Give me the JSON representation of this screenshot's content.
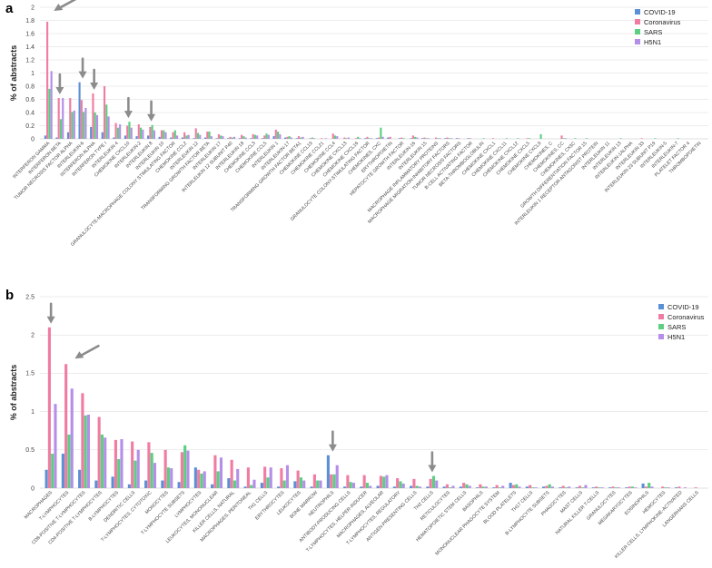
{
  "colors": {
    "COVID-19": "#5b8fd6",
    "Coronavirus": "#f07ca2",
    "SARS": "#5ccf83",
    "H5N1": "#b58ee9",
    "arrow": "#8c8c8c"
  },
  "chart_data": [
    {
      "panel": "a",
      "type": "bar",
      "ylabel": "% of abstracts",
      "ylim": [
        0,
        2
      ],
      "yticks": [
        "0",
        "0.2",
        "0.4",
        "0.6",
        "0.8",
        "1",
        "1.2",
        "1.4",
        "1.6",
        "1.8",
        "2"
      ],
      "grid": true,
      "legend": "top-right",
      "categories": [
        "INTERFERON GAMMA",
        "INTERFERON BETA",
        "TUMOR NECROSIS FACTOR ALPHA",
        "INTERLEUKIN-6",
        "INTERFERON ALPHA",
        "INTERFERON TYPE I",
        "INTERLEUKIN 4",
        "CHEMOKINE CXCL10",
        "INTERLEUKIN-2",
        "INTERLEUKIN 8",
        "INTERLEUKIN 10",
        "GRANULOCYTE-MACROPHAGE COLONY STIMULATING FACTOR",
        "CHEMOKINE CCL2",
        "INTERLEUKIN 12",
        "TRANSFORMING GROWTH FACTOR BETA",
        "INTERLEUKIN 17",
        "INTERLEUKIN 12 SUBUNIT P40",
        "INTERLEUKIN 18",
        "CHEMOKINE CCL3",
        "CHEMOKINE CCL5",
        "INTERLEUKIN 1",
        "INTERLEUKIN-17",
        "TRANSFORMING GROWTH FACTOR BETA1",
        "CHEMOKINE CCL19",
        "CHEMOKINE CCL21",
        "CHEMOKINE CCL4",
        "CHEMOKINE CXCL13",
        "CHEMOKINE CXCL16",
        "GRANULOCYTE COLONY-STIMULATING FACTOR",
        "CHEMOKINES, CXC",
        "ERYTHROPOIETIN",
        "HEPATOCYTE GROWTH FACTOR",
        "INTERLEUKIN-16",
        "INTERLEUKIN 15",
        "MACROPHAGE INFLAMMATORY PROTEINS",
        "MACROPHAGE MIGRATION-INHIBITORY FACTORS",
        "TUMOR NECROSIS FACTORS",
        "B-CELL ACTIVATING FACTOR",
        "BETA-THROMBOGLOBULIN",
        "CHEMOKINE CXCL1",
        "CHEMOKINE CXCL11",
        "CHEMOKINE CXCL12",
        "CHEMOKINE CXCL5",
        "CHEMOKINE CXCL9",
        "CHEMOKINES, C",
        "CHEMOKINES, CC",
        "CHEMOKINES, CX3C",
        "GROWTH DIFFERENTIATION FACTOR 15",
        "INTERLEUKIN 1 RECEPTOR ANTAGONIST PROTEIN",
        "INTERLEUKIN 11",
        "INTERLEUKIN 13",
        "INTERLEUKIN-1ALPHA",
        "INTERLEUKIN 33",
        "INTERLEUKIN-23 SUBUNIT P19",
        "INTERLEUKIN-5",
        "INTERLEUKIN-7",
        "PLATELET FACTOR 4",
        "THROMBOPOIETIN"
      ],
      "series": [
        {
          "name": "COVID-19",
          "values": [
            0.05,
            0.02,
            0.1,
            0.86,
            0.18,
            0.1,
            0.02,
            0.05,
            0.04,
            0.05,
            0.03,
            0.02,
            0.02,
            0.01,
            0.02,
            0.01,
            0.01,
            0.01,
            0.01,
            0.01,
            0.04,
            0.02,
            0.01,
            0,
            0,
            0,
            0,
            0,
            0.01,
            0.01,
            0.02,
            0.01,
            0.01,
            0.01,
            0,
            0.01,
            0.01,
            0.01,
            0,
            0,
            0,
            0,
            0,
            0,
            0,
            0,
            0,
            0,
            0,
            0,
            0,
            0,
            0,
            0,
            0,
            0,
            0,
            0
          ]
        },
        {
          "name": "Coronavirus",
          "values": [
            1.78,
            0.62,
            0.62,
            0.59,
            0.69,
            0.8,
            0.24,
            0.2,
            0.22,
            0.18,
            0.13,
            0.1,
            0.1,
            0.16,
            0.11,
            0.07,
            0.03,
            0.06,
            0.07,
            0.05,
            0.14,
            0.03,
            0.04,
            0.01,
            0.01,
            0.08,
            0.02,
            0.01,
            0.03,
            0.02,
            0.03,
            0.02,
            0.05,
            0.02,
            0.02,
            0.02,
            0.01,
            0.01,
            0,
            0.01,
            0,
            0,
            0.01,
            0,
            0,
            0.05,
            0,
            0,
            0,
            0,
            0,
            0,
            0.01,
            0,
            0,
            0,
            0,
            0
          ]
        },
        {
          "name": "SARS",
          "values": [
            0.76,
            0.3,
            0.41,
            0.41,
            0.4,
            0.52,
            0.17,
            0.26,
            0.17,
            0.21,
            0.13,
            0.13,
            0.05,
            0.09,
            0.11,
            0.05,
            0.02,
            0.04,
            0.06,
            0.08,
            0.11,
            0.04,
            0.02,
            0.02,
            0,
            0.05,
            0.01,
            0.03,
            0.01,
            0.17,
            0,
            0.01,
            0.03,
            0.01,
            0.01,
            0.01,
            0,
            0,
            0.01,
            0,
            0.01,
            0.01,
            0.01,
            0.07,
            0,
            0.01,
            0.01,
            0.01,
            0,
            0,
            0.01,
            0,
            0,
            0.01,
            0,
            0.01,
            0,
            0
          ]
        },
        {
          "name": "H5N1",
          "values": [
            1.03,
            0.62,
            0.43,
            0.47,
            0.36,
            0.34,
            0.22,
            0.17,
            0.14,
            0.13,
            0.1,
            0.05,
            0.06,
            0.06,
            0.04,
            0.04,
            0.03,
            0.02,
            0.05,
            0.06,
            0.07,
            0.02,
            0.03,
            0.01,
            0.01,
            0.04,
            0.02,
            0.01,
            0.01,
            0.03,
            0,
            0,
            0.02,
            0.01,
            0.01,
            0.01,
            0,
            0,
            0,
            0,
            0,
            0,
            0,
            0,
            0,
            0.01,
            0,
            0,
            0,
            0,
            0,
            0,
            0,
            0,
            0,
            0,
            0,
            0
          ]
        }
      ],
      "arrows_at": [
        "INTERFERON GAMMA",
        "INTERFERON BETA",
        "INTERLEUKIN-6",
        "INTERFERON ALPHA",
        "CHEMOKINE CXCL10",
        "INTERLEUKIN 8"
      ]
    },
    {
      "panel": "b",
      "type": "bar",
      "ylabel": "% of abstracts",
      "ylim": [
        0,
        2.5
      ],
      "yticks": [
        "0",
        "0.5",
        "1",
        "1.5",
        "2",
        "2.5"
      ],
      "grid": true,
      "legend": "top-right",
      "categories": [
        "MACROPHAGES",
        "T-LYMPHOCYTES",
        "CD8-POSITIVE T-LYMPHOCYTES",
        "CD4-POSITIVE T-LYMPHOCYTES",
        "B-LYMPHOCYTES",
        "DENDRITIC CELLS",
        "T-LYMPHOCYTES, CYTOTOXIC",
        "MONOCYTES",
        "T-LYMPHOCYTE SUBSETS",
        "LYMPHOCYTES",
        "LEUKOCYTES, MONONUCLEAR",
        "KILLER CELLS, NATURAL",
        "MACROPHAGES, PERITONEAL",
        "TH1 CELLS",
        "ERYTHROCYTES",
        "LEUKOCYTES",
        "BONE MARROW",
        "NEUTROPHILS",
        "ANTIBODY-PRODUCING CELLS",
        "T-LYMPHOCYTES, HELPER-INDUCER",
        "MACROPHAGES, ALVEOLAR",
        "T-LYMPHOCYTES, REGULATORY",
        "ANTIGEN-PRESENTING CELLS",
        "TH2 CELLS",
        "RETICULOCYTES",
        "HEMATOPOIETIC STEM CELLS",
        "BASOPHILS",
        "MONONUCLEAR PHAGOCYTE SYSTEM",
        "BLOOD PLATELETS",
        "TH17 CELLS",
        "B-LYMPHOCYTE SUBSETS",
        "PHAGOCYTES",
        "MAST CELLS",
        "NATURAL KILLER T-CELLS",
        "GRANULOCYTES",
        "MEGAKARYOCYTES",
        "EOSINOPHILS",
        "HEMOCYTES",
        "KILLER CELLS, LYMPHOKINE-ACTIVATED",
        "LANGERHANS CELLS"
      ],
      "series": [
        {
          "name": "COVID-19",
          "values": [
            0.24,
            0.45,
            0.24,
            0.1,
            0.15,
            0.05,
            0.1,
            0.1,
            0.08,
            0.27,
            0.05,
            0.13,
            0.02,
            0.07,
            0.02,
            0.09,
            0.02,
            0.43,
            0.02,
            0.02,
            0.03,
            0.02,
            0.03,
            0.02,
            0.02,
            0.02,
            0.01,
            0.01,
            0.07,
            0.02,
            0.02,
            0.01,
            0.01,
            0.01,
            0.01,
            0.01,
            0.06,
            0,
            0.01,
            0
          ]
        },
        {
          "name": "Coronavirus",
          "values": [
            2.1,
            1.62,
            1.24,
            0.93,
            0.63,
            0.61,
            0.6,
            0.5,
            0.47,
            0.24,
            0.43,
            0.37,
            0.27,
            0.28,
            0.26,
            0.23,
            0.18,
            0.18,
            0.17,
            0.17,
            0.16,
            0.13,
            0.12,
            0.12,
            0.05,
            0.07,
            0.05,
            0.04,
            0.04,
            0.04,
            0.03,
            0.03,
            0.03,
            0.02,
            0.02,
            0.02,
            0.02,
            0.02,
            0.02,
            0.01
          ]
        },
        {
          "name": "SARS",
          "values": [
            0.45,
            0.7,
            0.95,
            0.7,
            0.38,
            0.36,
            0.46,
            0.27,
            0.56,
            0.19,
            0.22,
            0.1,
            0.04,
            0.14,
            0.1,
            0.14,
            0.1,
            0.18,
            0.08,
            0.07,
            0.15,
            0.09,
            0.03,
            0.16,
            0.01,
            0.05,
            0.02,
            0.01,
            0.05,
            0.01,
            0.05,
            0.01,
            0.01,
            0.01,
            0.01,
            0.02,
            0.07,
            0.01,
            0,
            0
          ]
        },
        {
          "name": "H5N1",
          "values": [
            1.1,
            1.3,
            0.96,
            0.66,
            0.64,
            0.5,
            0.33,
            0.26,
            0.49,
            0.22,
            0.4,
            0.25,
            0.11,
            0.27,
            0.3,
            0.1,
            0.1,
            0.3,
            0.07,
            0.03,
            0.17,
            0.06,
            0.02,
            0.1,
            0.03,
            0.03,
            0.02,
            0.03,
            0.02,
            0.01,
            0.02,
            0.02,
            0.04,
            0.01,
            0.01,
            0.01,
            0.02,
            0.01,
            0.01,
            0
          ]
        }
      ],
      "arrows_at": [
        "MACROPHAGES",
        "T-LYMPHOCYTES",
        "NEUTROPHILS",
        "TH2 CELLS"
      ]
    }
  ]
}
